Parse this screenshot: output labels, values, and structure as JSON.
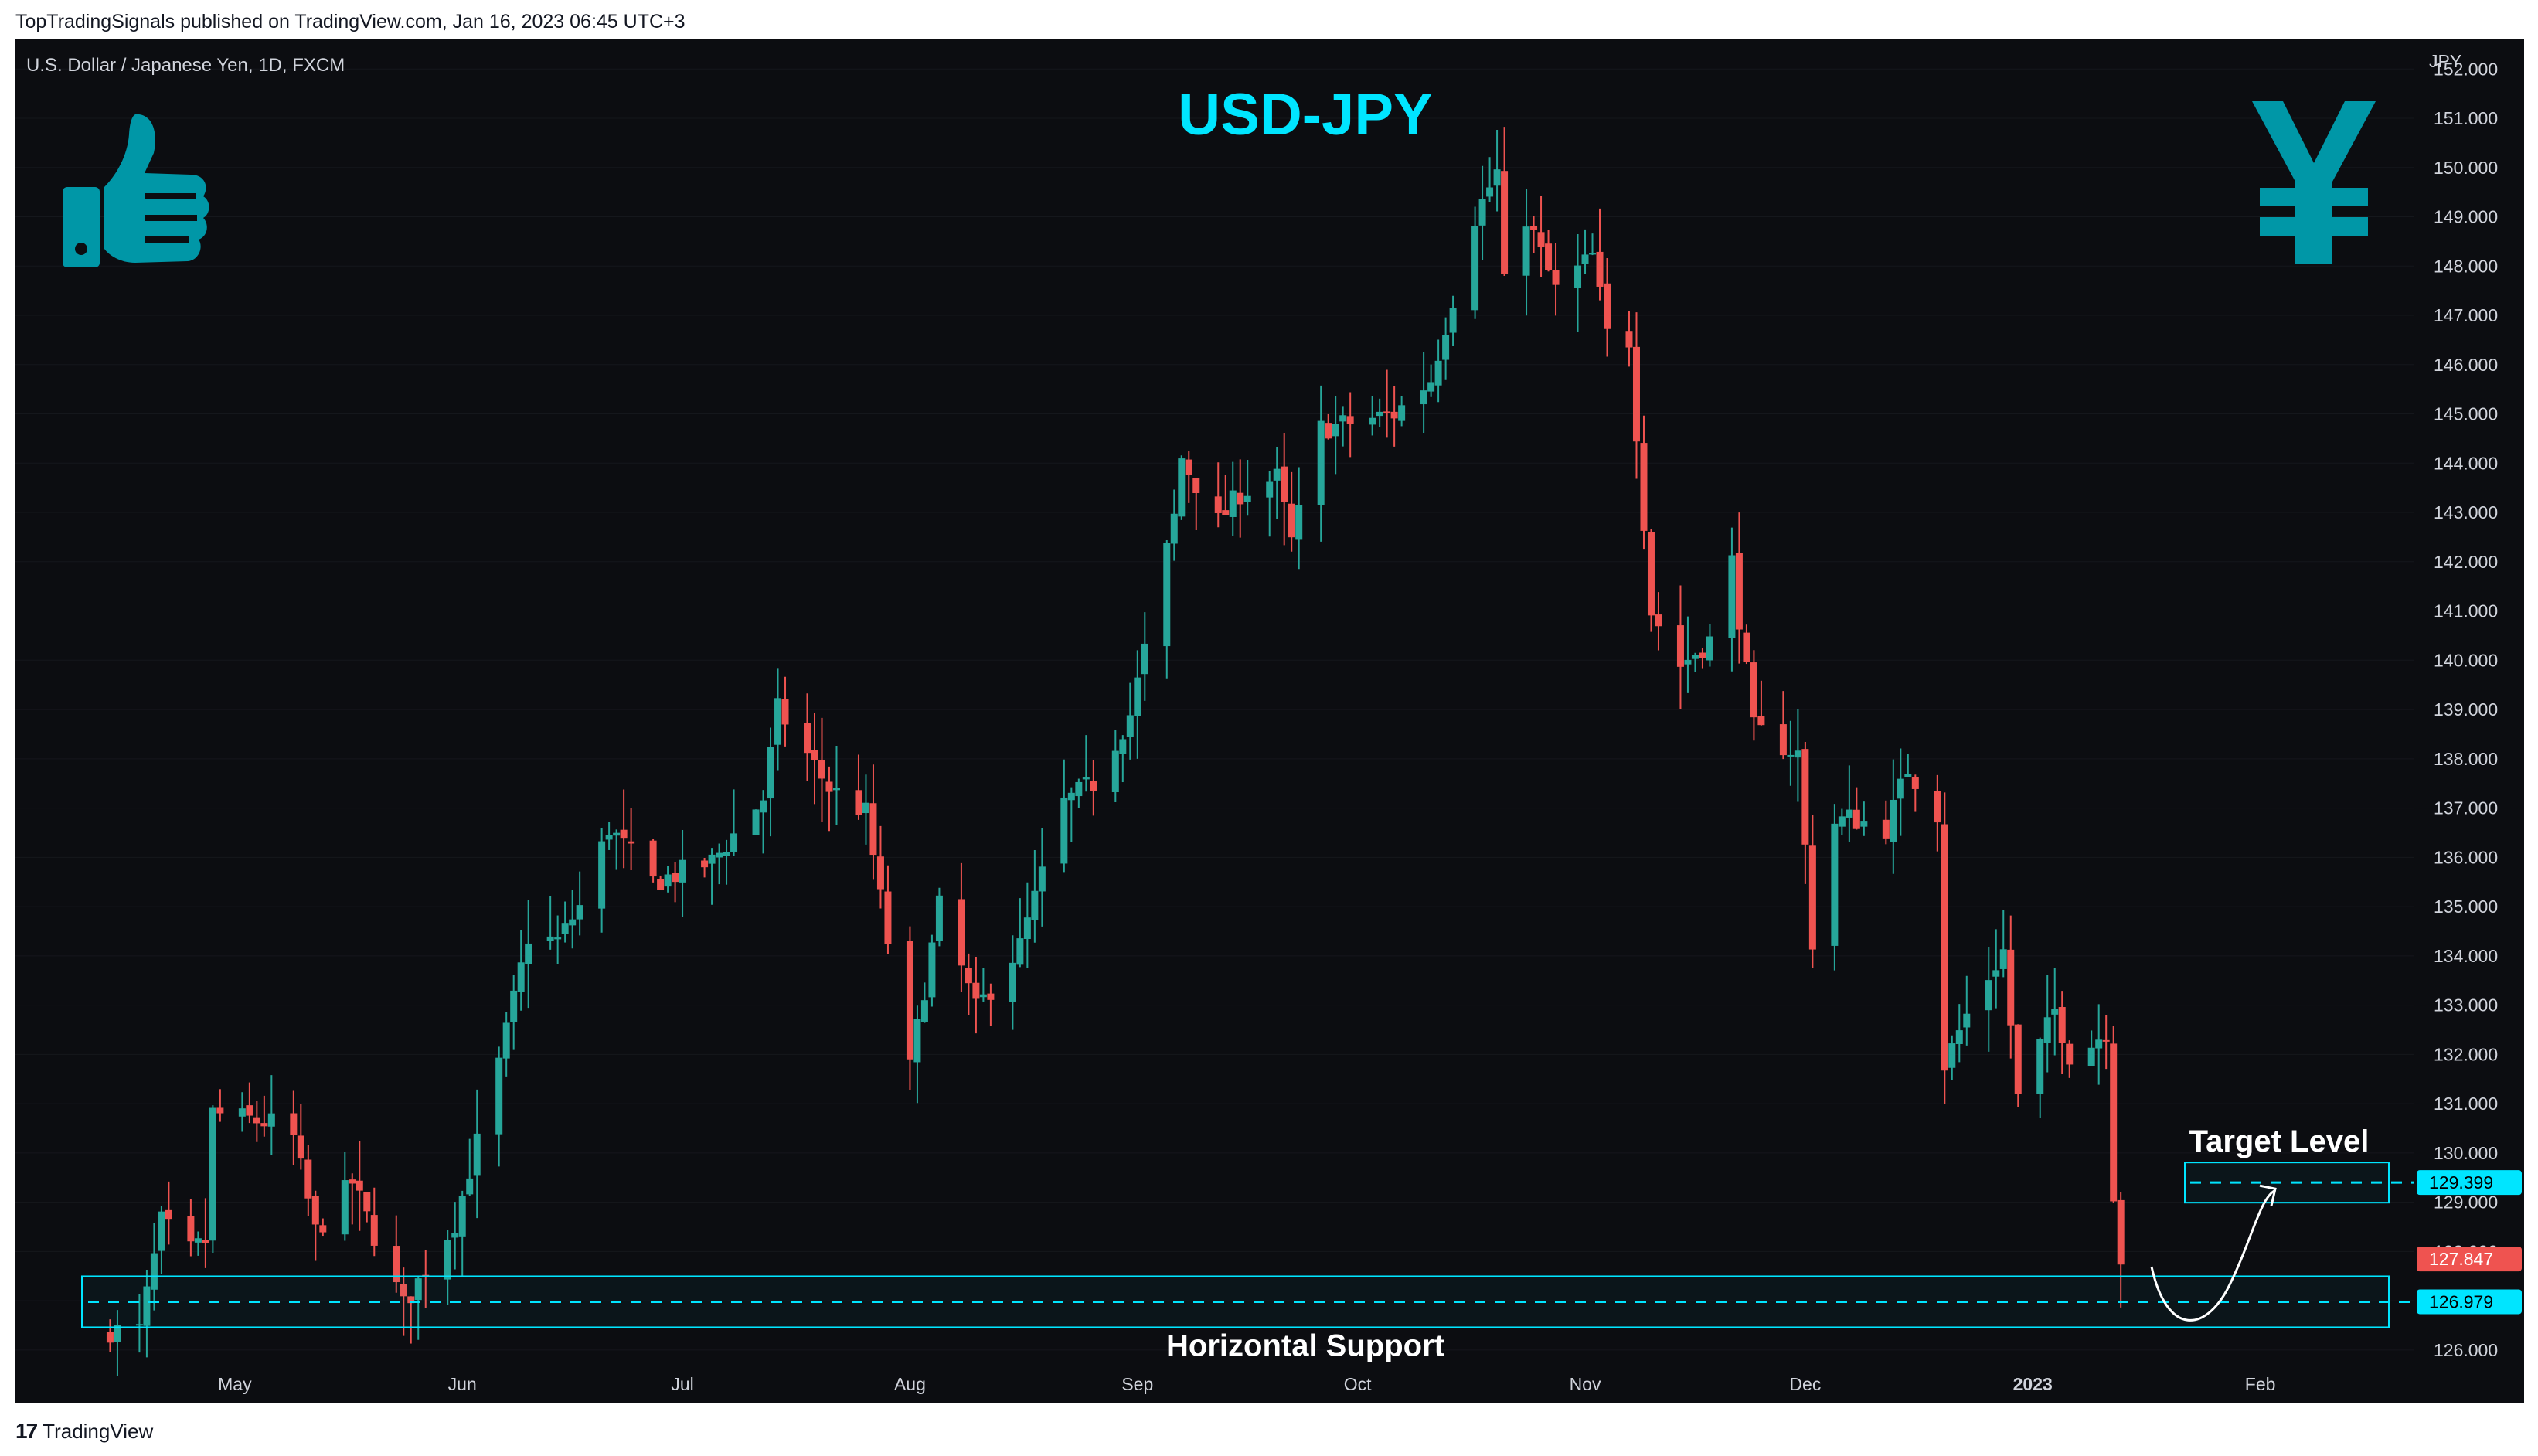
{
  "header": {
    "published": "TopTradingSignals published on TradingView.com, Jan 16, 2023 06:45 UTC+3"
  },
  "chart_meta": {
    "symbol": "U.S. Dollar / Japanese Yen, 1D, FXCM",
    "title": "USD-JPY",
    "currency": "JPY"
  },
  "footer": {
    "brand": "TradingView",
    "logo_glyph": "17"
  },
  "annotations": {
    "target_label": "Target Level",
    "support_label": "Horizontal Support",
    "target_value": "129.399",
    "support_value": "126.979",
    "last_value": "127.847"
  },
  "icons": {
    "left": "thumbs-up-icon",
    "right": "yen-icon"
  },
  "colors": {
    "up": "#26a69a",
    "down": "#ef5350",
    "accent": "#00e5ff",
    "background": "#0c0d11",
    "axis_text": "#d1d4dc"
  },
  "chart_data": {
    "type": "candlestick",
    "title": "USD-JPY",
    "ylim": [
      125.7,
      152.6
    ],
    "y_ticks": [
      "152.000",
      "151.000",
      "150.000",
      "149.000",
      "148.000",
      "147.000",
      "146.000",
      "145.000",
      "144.000",
      "143.000",
      "142.000",
      "141.000",
      "140.000",
      "139.000",
      "138.000",
      "137.000",
      "136.000",
      "135.000",
      "134.000",
      "133.000",
      "132.000",
      "131.000",
      "130.000",
      "129.000",
      "128.000",
      "127.000",
      "126.000"
    ],
    "y_tick_values": [
      152,
      151,
      150,
      149,
      148,
      147,
      146,
      145,
      144,
      143,
      142,
      141,
      140,
      139,
      138,
      137,
      136,
      135,
      134,
      133,
      132,
      131,
      130,
      129,
      128,
      127,
      126
    ],
    "x_labels": [
      "May",
      "Jun",
      "Jul",
      "Aug",
      "Sep",
      "Oct",
      "Nov",
      "Dec",
      "2023",
      "Feb"
    ],
    "x_label_dates": [
      "2022-05-01",
      "2022-06-01",
      "2022-07-01",
      "2022-08-01",
      "2022-09-01",
      "2022-10-01",
      "2022-11-01",
      "2022-12-01",
      "2023-01-01",
      "2023-02-01"
    ],
    "x_range": [
      "2022-04-01",
      "2023-02-22"
    ],
    "series_anchors": [
      {
        "date": "2022-04-18",
        "close": 126.4
      },
      {
        "date": "2022-04-21",
        "close": 128.6
      },
      {
        "date": "2022-04-25",
        "close": 128.0
      },
      {
        "date": "2022-04-27",
        "close": 128.2
      },
      {
        "date": "2022-04-28",
        "close": 130.8
      },
      {
        "date": "2022-05-06",
        "close": 130.6
      },
      {
        "date": "2022-05-09",
        "close": 130.3
      },
      {
        "date": "2022-05-12",
        "close": 128.4
      },
      {
        "date": "2022-05-17",
        "close": 129.4
      },
      {
        "date": "2022-05-24",
        "close": 126.9
      },
      {
        "date": "2022-05-31",
        "close": 128.6
      },
      {
        "date": "2022-06-06",
        "close": 131.8
      },
      {
        "date": "2022-06-10",
        "close": 134.4
      },
      {
        "date": "2022-06-14",
        "close": 134.3
      },
      {
        "date": "2022-06-17",
        "close": 135.0
      },
      {
        "date": "2022-06-21",
        "close": 136.6
      },
      {
        "date": "2022-06-27",
        "close": 135.5
      },
      {
        "date": "2022-07-05",
        "close": 135.9
      },
      {
        "date": "2022-07-12",
        "close": 137.2
      },
      {
        "date": "2022-07-14",
        "close": 139.0
      },
      {
        "date": "2022-07-21",
        "close": 137.4
      },
      {
        "date": "2022-07-26",
        "close": 136.9
      },
      {
        "date": "2022-08-01",
        "close": 131.7
      },
      {
        "date": "2022-08-05",
        "close": 135.0
      },
      {
        "date": "2022-08-10",
        "close": 132.9
      },
      {
        "date": "2022-08-16",
        "close": 134.2
      },
      {
        "date": "2022-08-22",
        "close": 137.1
      },
      {
        "date": "2022-08-26",
        "close": 137.5
      },
      {
        "date": "2022-08-31",
        "close": 138.9
      },
      {
        "date": "2022-09-02",
        "close": 140.2
      },
      {
        "date": "2022-09-06",
        "close": 142.9
      },
      {
        "date": "2022-09-07",
        "close": 144.1
      },
      {
        "date": "2022-09-12",
        "close": 142.8
      },
      {
        "date": "2022-09-15",
        "close": 143.4
      },
      {
        "date": "2022-09-20",
        "close": 143.7
      },
      {
        "date": "2022-09-22",
        "close": 142.4
      },
      {
        "date": "2022-09-26",
        "close": 144.7
      },
      {
        "date": "2022-10-06",
        "close": 145.0
      },
      {
        "date": "2022-10-11",
        "close": 145.7
      },
      {
        "date": "2022-10-17",
        "close": 149.0
      },
      {
        "date": "2022-10-20",
        "close": 149.9
      },
      {
        "date": "2022-10-21",
        "close": 147.6
      },
      {
        "date": "2022-10-24",
        "close": 149.0
      },
      {
        "date": "2022-10-28",
        "close": 147.5
      },
      {
        "date": "2022-11-02",
        "close": 148.2
      },
      {
        "date": "2022-11-04",
        "close": 146.6
      },
      {
        "date": "2022-11-07",
        "close": 146.5
      },
      {
        "date": "2022-11-10",
        "close": 141.0
      },
      {
        "date": "2022-11-14",
        "close": 139.9
      },
      {
        "date": "2022-11-18",
        "close": 140.4
      },
      {
        "date": "2022-11-21",
        "close": 142.0
      },
      {
        "date": "2022-11-24",
        "close": 138.6
      },
      {
        "date": "2022-11-30",
        "close": 138.1
      },
      {
        "date": "2022-12-02",
        "close": 134.3
      },
      {
        "date": "2022-12-05",
        "close": 136.7
      },
      {
        "date": "2022-12-07",
        "close": 136.8
      },
      {
        "date": "2022-12-12",
        "close": 136.6
      },
      {
        "date": "2022-12-15",
        "close": 137.8
      },
      {
        "date": "2022-12-19",
        "close": 136.9
      },
      {
        "date": "2022-12-20",
        "close": 131.8
      },
      {
        "date": "2022-12-23",
        "close": 132.8
      },
      {
        "date": "2022-12-28",
        "close": 134.1
      },
      {
        "date": "2022-12-30",
        "close": 131.1
      },
      {
        "date": "2023-01-04",
        "close": 132.9
      },
      {
        "date": "2023-01-06",
        "close": 132.0
      },
      {
        "date": "2023-01-09",
        "close": 132.2
      },
      {
        "date": "2023-01-11",
        "close": 132.5
      },
      {
        "date": "2023-01-12",
        "close": 129.2
      },
      {
        "date": "2023-01-13",
        "close": 127.847
      }
    ],
    "extremes": {
      "high": {
        "date": "2022-10-21",
        "value": 151.9
      },
      "low": {
        "date": "2022-04-15",
        "value": 125.8
      }
    },
    "levels": {
      "target": 129.399,
      "support": 126.979,
      "last": 127.847
    }
  }
}
